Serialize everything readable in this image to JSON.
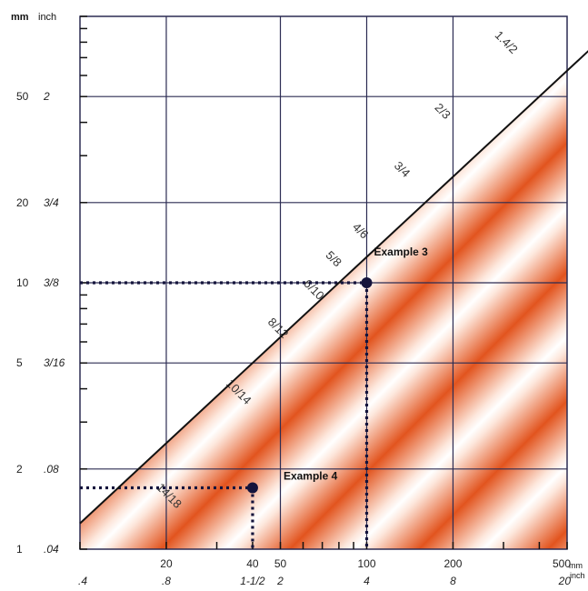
{
  "chart_data": {
    "type": "scatter",
    "title": "",
    "x_axis": {
      "scale": "log",
      "range_mm": [
        10,
        500
      ],
      "mm_unit": "mm",
      "inch_unit": "inch",
      "mm_ticks": [
        {
          "value": 20,
          "label": "20"
        },
        {
          "value": 40,
          "label": "40"
        },
        {
          "value": 50,
          "label": "50"
        },
        {
          "value": 100,
          "label": "100"
        },
        {
          "value": 200,
          "label": "200"
        },
        {
          "value": 500,
          "label": "500"
        }
      ],
      "inch_ticks": [
        {
          "value": 10,
          "label": ".4"
        },
        {
          "value": 20,
          "label": ".8"
        },
        {
          "value": 40,
          "label": "1-1/2"
        },
        {
          "value": 50,
          "label": "2"
        },
        {
          "value": 100,
          "label": "4"
        },
        {
          "value": 200,
          "label": "8"
        },
        {
          "value": 500,
          "label": "20"
        }
      ]
    },
    "y_axis": {
      "scale": "log",
      "range_mm": [
        1,
        100
      ],
      "mm_unit": "mm",
      "inch_unit": "inch",
      "ticks": [
        {
          "value": 1,
          "mm": "1",
          "inch": ".04"
        },
        {
          "value": 2,
          "mm": "2",
          "inch": ".08"
        },
        {
          "value": 5,
          "mm": "5",
          "inch": "3/16"
        },
        {
          "value": 10,
          "mm": "10",
          "inch": "3/8"
        },
        {
          "value": 20,
          "mm": "20",
          "inch": "3/4"
        },
        {
          "value": 50,
          "mm": "50",
          "inch": "2"
        }
      ]
    },
    "grid": true,
    "bands": [
      {
        "label": "14/18",
        "x": 20,
        "y": 1.55
      },
      {
        "label": "10/14",
        "x": 35,
        "y": 3.8
      },
      {
        "label": "8/12",
        "x": 48,
        "y": 6.6
      },
      {
        "label": "6/10",
        "x": 64,
        "y": 9.2
      },
      {
        "label": "5/8",
        "x": 75,
        "y": 12
      },
      {
        "label": "4/6",
        "x": 93,
        "y": 15.3
      },
      {
        "label": "3/4",
        "x": 130,
        "y": 26
      },
      {
        "label": "2/3",
        "x": 180,
        "y": 43
      },
      {
        "label": "1.4/2",
        "x": 300,
        "y": 78
      }
    ],
    "points": [
      {
        "label": "Example 3",
        "x": 100,
        "y": 10
      },
      {
        "label": "Example 4",
        "x": 40,
        "y": 1.7
      }
    ],
    "colors": {
      "band_dark": "#e2541e",
      "band_light": "#ffffff",
      "grid": "#2b2b52",
      "guide": "#14143c"
    }
  }
}
